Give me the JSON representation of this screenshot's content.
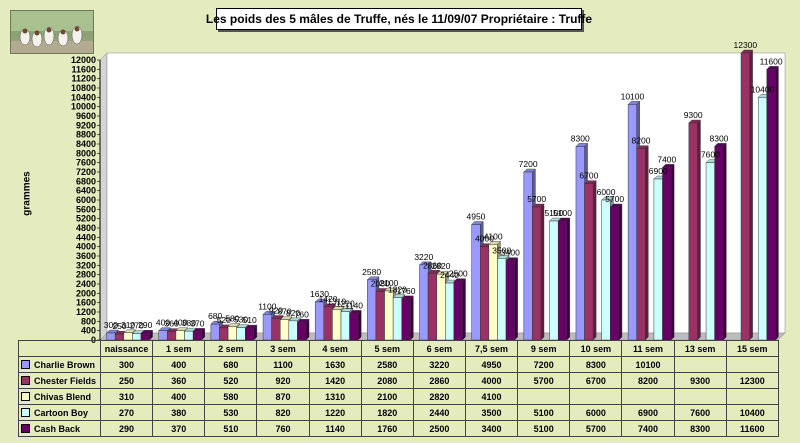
{
  "title": "Les poids des 5 mâles de Truffe, nés le 11/09/07  Propriétaire : Truffe",
  "photo_icon": "dogs-photo-icon",
  "chart_data": {
    "type": "bar",
    "title": "Les poids des 5 mâles de Truffe, nés le 11/09/07  Propriétaire : Truffe",
    "xlabel": "",
    "ylabel": "grammes",
    "ylim": [
      0,
      12000
    ],
    "ytick_step": 400,
    "grid": false,
    "legend": "left (data table)",
    "categories": [
      "naissance",
      "1 sem",
      "2 sem",
      "3 sem",
      "4 sem",
      "5 sem",
      "6 sem",
      "7,5 sem",
      "9 sem",
      "10 sem",
      "11 sem",
      "13 sem",
      "15 sem"
    ],
    "series": [
      {
        "name": "Charlie Brown",
        "color": "#9999ff",
        "values": [
          300,
          400,
          680,
          1100,
          1630,
          2580,
          3220,
          4950,
          7200,
          8300,
          10100,
          null,
          null
        ]
      },
      {
        "name": "Chester Fields",
        "color": "#993366",
        "values": [
          250,
          360,
          520,
          920,
          1420,
          2080,
          2860,
          4000,
          5700,
          6700,
          8200,
          9300,
          12300
        ]
      },
      {
        "name": "Chivas Blend",
        "color": "#ffffcc",
        "values": [
          310,
          400,
          580,
          870,
          1310,
          2100,
          2820,
          4100,
          null,
          null,
          null,
          null,
          null
        ]
      },
      {
        "name": "Cartoon Boy",
        "color": "#ccffff",
        "values": [
          270,
          380,
          530,
          820,
          1220,
          1820,
          2440,
          3500,
          5100,
          6000,
          6900,
          7600,
          10400
        ]
      },
      {
        "name": "Cash Back",
        "color": "#660066",
        "values": [
          290,
          370,
          510,
          760,
          1140,
          1760,
          2500,
          3400,
          5100,
          5700,
          7400,
          8300,
          11600
        ]
      }
    ],
    "table": {
      "rows": [
        {
          "label": "Charlie Brown",
          "cells": [
            "300",
            "400",
            "680",
            "1100",
            "1630",
            "2580",
            "3220",
            "4950",
            "7200",
            "8300",
            "10100",
            "",
            ""
          ]
        },
        {
          "label": "Chester Fields",
          "cells": [
            "250",
            "360",
            "520",
            "920",
            "1420",
            "2080",
            "2860",
            "4000",
            "5700",
            "6700",
            "8200",
            "9300",
            "12300"
          ]
        },
        {
          "label": "Chivas Blend",
          "cells": [
            "310",
            "400",
            "580",
            "870",
            "1310",
            "2100",
            "2820",
            "4100",
            "",
            "",
            "",
            "",
            ""
          ]
        },
        {
          "label": "Cartoon Boy",
          "cells": [
            "270",
            "380",
            "530",
            "820",
            "1220",
            "1820",
            "2440",
            "3500",
            "5100",
            "6000",
            "6900",
            "7600",
            "10400"
          ]
        },
        {
          "label": "Cash Back",
          "cells": [
            "290",
            "370",
            "510",
            "760",
            "1140",
            "1760",
            "2500",
            "3400",
            "5100",
            "5700",
            "7400",
            "8300",
            "11600"
          ]
        }
      ]
    }
  }
}
